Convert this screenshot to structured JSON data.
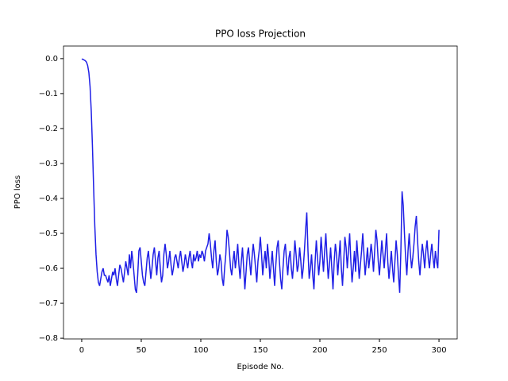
{
  "chart_data": {
    "type": "line",
    "title": "PPO loss Projection",
    "xlabel": "Episode No.",
    "ylabel": "PPO loss",
    "xlim": [
      -15.3,
      315.3
    ],
    "ylim": [
      -0.802,
      0.036
    ],
    "xticks": [
      0,
      50,
      100,
      150,
      200,
      250,
      300
    ],
    "yticks": [
      {
        "value": 0,
        "label": "0.0"
      },
      {
        "value": -0.1,
        "label": "−0.1"
      },
      {
        "value": -0.2,
        "label": "−0.2"
      },
      {
        "value": -0.3,
        "label": "−0.3"
      },
      {
        "value": -0.4,
        "label": "−0.4"
      },
      {
        "value": -0.5,
        "label": "−0.5"
      },
      {
        "value": -0.6,
        "label": "−0.6"
      },
      {
        "value": -0.7,
        "label": "−0.7"
      },
      {
        "value": -0.8,
        "label": "−0.8"
      }
    ],
    "x": [
      0,
      1,
      2,
      3,
      4,
      5,
      6,
      7,
      8,
      9,
      10,
      11,
      12,
      13,
      14,
      15,
      16,
      17,
      18,
      19,
      20,
      21,
      22,
      23,
      24,
      25,
      26,
      27,
      28,
      29,
      30,
      31,
      32,
      33,
      34,
      35,
      36,
      37,
      38,
      39,
      40,
      41,
      42,
      43,
      44,
      45,
      46,
      47,
      48,
      49,
      50,
      51,
      52,
      53,
      54,
      55,
      56,
      57,
      58,
      59,
      60,
      61,
      62,
      63,
      64,
      65,
      66,
      67,
      68,
      69,
      70,
      71,
      72,
      73,
      74,
      75,
      76,
      77,
      78,
      79,
      80,
      81,
      82,
      83,
      84,
      85,
      86,
      87,
      88,
      89,
      90,
      91,
      92,
      93,
      94,
      95,
      96,
      97,
      98,
      99,
      100,
      101,
      102,
      103,
      104,
      105,
      106,
      107,
      108,
      109,
      110,
      111,
      112,
      113,
      114,
      115,
      116,
      117,
      118,
      119,
      120,
      121,
      122,
      123,
      124,
      125,
      126,
      127,
      128,
      129,
      130,
      131,
      132,
      133,
      134,
      135,
      136,
      137,
      138,
      139,
      140,
      141,
      142,
      143,
      144,
      145,
      146,
      147,
      148,
      149,
      150,
      151,
      152,
      153,
      154,
      155,
      156,
      157,
      158,
      159,
      160,
      161,
      162,
      163,
      164,
      165,
      166,
      167,
      168,
      169,
      170,
      171,
      172,
      173,
      174,
      175,
      176,
      177,
      178,
      179,
      180,
      181,
      182,
      183,
      184,
      185,
      186,
      187,
      188,
      189,
      190,
      191,
      192,
      193,
      194,
      195,
      196,
      197,
      198,
      199,
      200,
      201,
      202,
      203,
      204,
      205,
      206,
      207,
      208,
      209,
      210,
      211,
      212,
      213,
      214,
      215,
      216,
      217,
      218,
      219,
      220,
      221,
      222,
      223,
      224,
      225,
      226,
      227,
      228,
      229,
      230,
      231,
      232,
      233,
      234,
      235,
      236,
      237,
      238,
      239,
      240,
      241,
      242,
      243,
      244,
      245,
      246,
      247,
      248,
      249,
      250,
      251,
      252,
      253,
      254,
      255,
      256,
      257,
      258,
      259,
      260,
      261,
      262,
      263,
      264,
      265,
      266,
      267,
      268,
      269,
      270,
      271,
      272,
      273,
      274,
      275,
      276,
      277,
      278,
      279,
      280,
      281,
      282,
      283,
      284,
      285,
      286,
      287,
      288,
      289,
      290,
      291,
      292,
      293,
      294,
      295,
      296,
      297,
      298,
      299,
      300
    ],
    "series": [
      {
        "color": "#1f1fe6",
        "values": [
          -0.001,
          -0.002,
          -0.004,
          -0.006,
          -0.01,
          -0.02,
          -0.04,
          -0.08,
          -0.15,
          -0.25,
          -0.37,
          -0.48,
          -0.56,
          -0.61,
          -0.64,
          -0.65,
          -0.63,
          -0.61,
          -0.6,
          -0.62,
          -0.62,
          -0.63,
          -0.64,
          -0.62,
          -0.65,
          -0.63,
          -0.61,
          -0.62,
          -0.6,
          -0.63,
          -0.65,
          -0.62,
          -0.59,
          -0.6,
          -0.62,
          -0.64,
          -0.61,
          -0.58,
          -0.6,
          -0.62,
          -0.56,
          -0.6,
          -0.55,
          -0.58,
          -0.62,
          -0.66,
          -0.67,
          -0.62,
          -0.55,
          -0.54,
          -0.58,
          -0.62,
          -0.64,
          -0.65,
          -0.61,
          -0.57,
          -0.55,
          -0.59,
          -0.63,
          -0.6,
          -0.56,
          -0.54,
          -0.58,
          -0.62,
          -0.57,
          -0.55,
          -0.6,
          -0.64,
          -0.62,
          -0.56,
          -0.53,
          -0.56,
          -0.6,
          -0.58,
          -0.55,
          -0.59,
          -0.62,
          -0.6,
          -0.57,
          -0.56,
          -0.58,
          -0.6,
          -0.57,
          -0.55,
          -0.58,
          -0.61,
          -0.59,
          -0.56,
          -0.58,
          -0.6,
          -0.57,
          -0.55,
          -0.58,
          -0.6,
          -0.56,
          -0.58,
          -0.57,
          -0.55,
          -0.58,
          -0.56,
          -0.57,
          -0.55,
          -0.56,
          -0.58,
          -0.55,
          -0.54,
          -0.53,
          -0.5,
          -0.53,
          -0.57,
          -0.6,
          -0.55,
          -0.52,
          -0.58,
          -0.62,
          -0.6,
          -0.56,
          -0.58,
          -0.63,
          -0.65,
          -0.6,
          -0.56,
          -0.49,
          -0.51,
          -0.55,
          -0.6,
          -0.62,
          -0.58,
          -0.55,
          -0.6,
          -0.57,
          -0.53,
          -0.59,
          -0.63,
          -0.58,
          -0.54,
          -0.6,
          -0.66,
          -0.61,
          -0.56,
          -0.54,
          -0.58,
          -0.62,
          -0.57,
          -0.53,
          -0.56,
          -0.6,
          -0.64,
          -0.58,
          -0.55,
          -0.51,
          -0.56,
          -0.62,
          -0.58,
          -0.55,
          -0.6,
          -0.53,
          -0.57,
          -0.63,
          -0.59,
          -0.55,
          -0.6,
          -0.65,
          -0.59,
          -0.54,
          -0.52,
          -0.58,
          -0.63,
          -0.66,
          -0.6,
          -0.55,
          -0.53,
          -0.58,
          -0.62,
          -0.57,
          -0.55,
          -0.6,
          -0.63,
          -0.58,
          -0.52,
          -0.56,
          -0.61,
          -0.59,
          -0.54,
          -0.58,
          -0.63,
          -0.6,
          -0.55,
          -0.49,
          -0.44,
          -0.55,
          -0.63,
          -0.6,
          -0.56,
          -0.62,
          -0.66,
          -0.58,
          -0.52,
          -0.57,
          -0.62,
          -0.58,
          -0.51,
          -0.56,
          -0.61,
          -0.55,
          -0.5,
          -0.57,
          -0.63,
          -0.59,
          -0.54,
          -0.6,
          -0.66,
          -0.58,
          -0.53,
          -0.56,
          -0.62,
          -0.57,
          -0.52,
          -0.6,
          -0.65,
          -0.58,
          -0.51,
          -0.54,
          -0.6,
          -0.55,
          -0.5,
          -0.58,
          -0.64,
          -0.6,
          -0.55,
          -0.61,
          -0.52,
          -0.57,
          -0.63,
          -0.59,
          -0.55,
          -0.5,
          -0.56,
          -0.62,
          -0.58,
          -0.54,
          -0.6,
          -0.57,
          -0.53,
          -0.56,
          -0.61,
          -0.55,
          -0.49,
          -0.52,
          -0.58,
          -0.62,
          -0.57,
          -0.52,
          -0.56,
          -0.6,
          -0.55,
          -0.5,
          -0.58,
          -0.63,
          -0.59,
          -0.55,
          -0.6,
          -0.64,
          -0.58,
          -0.52,
          -0.56,
          -0.62,
          -0.67,
          -0.55,
          -0.38,
          -0.42,
          -0.5,
          -0.57,
          -0.62,
          -0.55,
          -0.5,
          -0.56,
          -0.6,
          -0.57,
          -0.53,
          -0.48,
          -0.45,
          -0.52,
          -0.58,
          -0.62,
          -0.57,
          -0.53,
          -0.56,
          -0.6,
          -0.55,
          -0.52,
          -0.57,
          -0.6,
          -0.56,
          -0.53,
          -0.57,
          -0.6,
          -0.55,
          -0.58,
          -0.6,
          -0.49
        ]
      }
    ]
  }
}
